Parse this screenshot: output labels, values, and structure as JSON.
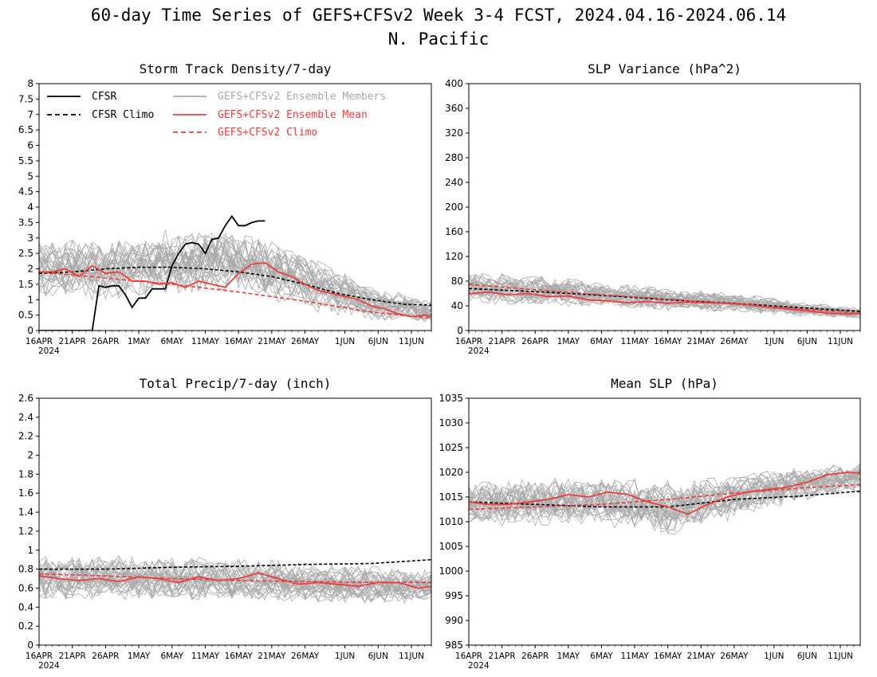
{
  "title": "60-day Time Series of GEFS+CFSv2 Week 3-4 FCST, 2024.04.16-2024.06.14",
  "subtitle": "N. Pacific",
  "colors": {
    "members": "#a9a9a9",
    "ens_mean": "#ef3b3b",
    "cfsr": "#000000"
  },
  "legend": {
    "cfsr": "CFSR",
    "cfsr_climo": "CFSR Climo",
    "members": "GEFS+CFSv2 Ensemble Members",
    "ens_mean": "GEFS+CFSv2 Ensemble Mean",
    "gefs_climo": "GEFS+CFSv2 Climo"
  },
  "x_tick_labels": [
    "16APR",
    "21APR",
    "26APR",
    "1MAY",
    "6MAY",
    "11MAY",
    "16MAY",
    "21MAY",
    "26MAY",
    "1JUN",
    "6JUN",
    "11JUN"
  ],
  "x_tick_days": [
    0,
    5,
    10,
    15,
    20,
    25,
    30,
    35,
    40,
    46,
    51,
    56
  ],
  "x_year_label": "2024",
  "ensemble_members_count_drawn": 30,
  "chart_data": [
    {
      "type": "line",
      "title": "Storm Track Density/7-day",
      "ylim": [
        0,
        8
      ],
      "yticks": [
        "0",
        "0.5",
        "1",
        "1.5",
        "2",
        "2.5",
        "3",
        "3.5",
        "4",
        "4.5",
        "5",
        "5.5",
        "6",
        "6.5",
        "7",
        "7.5",
        "8"
      ],
      "xlim": [
        0,
        59
      ],
      "members_spread": {
        "day": [
          0,
          10,
          20,
          30,
          40,
          50,
          59
        ],
        "center": [
          2.0,
          2.0,
          2.2,
          2.3,
          1.6,
          0.9,
          0.6
        ],
        "halfwidth": [
          1.3,
          1.3,
          1.4,
          1.4,
          1.2,
          0.8,
          0.5
        ]
      },
      "series": [
        {
          "name": "CFSR",
          "style": "solid",
          "color": "#000000",
          "x": [
            0,
            1,
            2,
            3,
            4,
            5,
            6,
            7,
            8,
            9,
            10,
            11,
            12,
            13,
            14,
            15,
            16,
            17,
            18,
            19,
            20,
            21,
            22,
            23,
            24,
            25,
            26,
            27,
            28,
            29,
            30,
            31,
            32,
            33,
            34
          ],
          "y": [
            0,
            0,
            0,
            0,
            0,
            0,
            0,
            0,
            0,
            1.45,
            1.4,
            1.45,
            1.45,
            1.15,
            0.75,
            1.05,
            1.05,
            1.35,
            1.35,
            1.35,
            2.1,
            2.5,
            2.8,
            2.85,
            2.8,
            2.5,
            2.95,
            3.0,
            3.4,
            3.7,
            3.4,
            3.4,
            3.5,
            3.55,
            3.55
          ]
        },
        {
          "name": "CFSR Climo",
          "style": "dashed",
          "color": "#000000",
          "x": [
            0,
            5,
            10,
            15,
            20,
            25,
            30,
            35,
            40,
            45,
            50,
            55,
            59
          ],
          "y": [
            1.85,
            1.9,
            2.0,
            2.05,
            2.05,
            2.0,
            1.9,
            1.75,
            1.5,
            1.2,
            1.0,
            0.85,
            0.82
          ]
        },
        {
          "name": "GEFS+CFSv2 Ensemble Mean",
          "style": "solid",
          "color": "#ef3b3b",
          "x": [
            0,
            2,
            4,
            6,
            8,
            10,
            12,
            14,
            16,
            18,
            20,
            22,
            24,
            26,
            28,
            30,
            32,
            34,
            36,
            38,
            40,
            42,
            44,
            46,
            48,
            50,
            52,
            54,
            56,
            58,
            59
          ],
          "y": [
            1.9,
            1.9,
            2.0,
            1.75,
            2.1,
            1.85,
            1.9,
            1.6,
            1.6,
            1.5,
            1.55,
            1.4,
            1.6,
            1.5,
            1.4,
            1.85,
            2.15,
            2.2,
            1.9,
            1.75,
            1.5,
            1.3,
            1.2,
            1.1,
            1.0,
            0.8,
            0.7,
            0.55,
            0.45,
            0.5,
            0.45
          ]
        },
        {
          "name": "GEFS+CFSv2 Climo",
          "style": "dashed",
          "color": "#ef3b3b",
          "x": [
            0,
            10,
            20,
            30,
            40,
            50,
            59
          ],
          "y": [
            1.9,
            1.7,
            1.5,
            1.25,
            0.95,
            0.6,
            0.4
          ]
        }
      ]
    },
    {
      "type": "line",
      "title": "SLP Variance (hPa^2)",
      "ylim": [
        0,
        400
      ],
      "yticks": [
        "0",
        "40",
        "80",
        "120",
        "160",
        "200",
        "240",
        "280",
        "320",
        "360",
        "400"
      ],
      "xlim": [
        0,
        59
      ],
      "members_spread": {
        "day": [
          0,
          10,
          20,
          30,
          40,
          50,
          59
        ],
        "center": [
          70,
          65,
          58,
          50,
          45,
          35,
          28
        ],
        "halfwidth": [
          35,
          32,
          28,
          25,
          22,
          15,
          12
        ]
      },
      "series": [
        {
          "name": "CFSR Climo",
          "style": "dashed",
          "color": "#000000",
          "x": [
            0,
            10,
            20,
            30,
            40,
            50,
            59
          ],
          "y": [
            68,
            63,
            57,
            50,
            44,
            37,
            31
          ]
        },
        {
          "name": "GEFS+CFSv2 Ensemble Mean",
          "style": "solid",
          "color": "#ef3b3b",
          "x": [
            0,
            3,
            6,
            9,
            12,
            15,
            18,
            21,
            24,
            27,
            30,
            33,
            36,
            39,
            42,
            45,
            48,
            51,
            54,
            57,
            59
          ],
          "y": [
            60,
            62,
            58,
            60,
            55,
            56,
            50,
            48,
            45,
            47,
            44,
            46,
            45,
            44,
            42,
            38,
            35,
            32,
            28,
            27,
            28
          ]
        },
        {
          "name": "GEFS+CFSv2 Climo",
          "style": "dashed",
          "color": "#ef3b3b",
          "x": [
            0,
            10,
            20,
            30,
            40,
            50,
            59
          ],
          "y": [
            75,
            66,
            58,
            51,
            43,
            35,
            28
          ]
        }
      ]
    },
    {
      "type": "line",
      "title": "Total Precip/7-day (inch)",
      "ylim": [
        0,
        2.6
      ],
      "yticks": [
        "0",
        "0.2",
        "0.4",
        "0.6",
        "0.8",
        "1",
        "1.2",
        "1.4",
        "1.6",
        "1.8",
        "2",
        "2.2",
        "2.4",
        "2.6"
      ],
      "xlim": [
        0,
        59
      ],
      "members_spread": {
        "day": [
          0,
          10,
          20,
          30,
          40,
          50,
          59
        ],
        "center": [
          0.72,
          0.72,
          0.7,
          0.7,
          0.66,
          0.64,
          0.62
        ],
        "halfwidth": [
          0.32,
          0.32,
          0.3,
          0.3,
          0.28,
          0.26,
          0.24
        ]
      },
      "series": [
        {
          "name": "CFSR Climo",
          "style": "dashed",
          "color": "#000000",
          "x": [
            0,
            10,
            20,
            30,
            40,
            50,
            59
          ],
          "y": [
            0.8,
            0.8,
            0.82,
            0.83,
            0.85,
            0.86,
            0.9
          ]
        },
        {
          "name": "GEFS+CFSv2 Ensemble Mean",
          "style": "solid",
          "color": "#ef3b3b",
          "x": [
            0,
            3,
            6,
            9,
            12,
            15,
            18,
            21,
            24,
            27,
            30,
            33,
            36,
            39,
            42,
            45,
            48,
            51,
            54,
            57,
            59
          ],
          "y": [
            0.73,
            0.7,
            0.68,
            0.7,
            0.67,
            0.72,
            0.7,
            0.66,
            0.72,
            0.68,
            0.7,
            0.76,
            0.7,
            0.64,
            0.66,
            0.64,
            0.62,
            0.66,
            0.66,
            0.6,
            0.62
          ]
        },
        {
          "name": "GEFS+CFSv2 Climo",
          "style": "dashed",
          "color": "#ef3b3b",
          "x": [
            0,
            10,
            20,
            30,
            40,
            50,
            59
          ],
          "y": [
            0.75,
            0.73,
            0.7,
            0.68,
            0.67,
            0.66,
            0.66
          ]
        }
      ]
    },
    {
      "type": "line",
      "title": "Mean SLP (hPa)",
      "ylim": [
        985,
        1035
      ],
      "yticks": [
        "985",
        "990",
        "995",
        "1000",
        "1005",
        "1010",
        "1015",
        "1020",
        "1025",
        "1030",
        "1035"
      ],
      "xlim": [
        0,
        59
      ],
      "members_spread": {
        "day": [
          0,
          10,
          20,
          30,
          40,
          50,
          59
        ],
        "center": [
          1013.5,
          1014,
          1014,
          1012.5,
          1015,
          1017.5,
          1019
        ],
        "halfwidth": [
          6,
          6.5,
          7,
          7.5,
          6,
          5,
          4.5
        ]
      },
      "series": [
        {
          "name": "CFSR Climo",
          "style": "dashed",
          "color": "#000000",
          "x": [
            0,
            10,
            20,
            30,
            40,
            50,
            59
          ],
          "y": [
            1014,
            1013.5,
            1013,
            1013,
            1014.5,
            1015.2,
            1016.2
          ]
        },
        {
          "name": "GEFS+CFSv2 Ensemble Mean",
          "style": "solid",
          "color": "#ef3b3b",
          "x": [
            0,
            3,
            6,
            9,
            12,
            15,
            18,
            21,
            24,
            27,
            30,
            33,
            36,
            39,
            42,
            45,
            48,
            51,
            54,
            57,
            59
          ],
          "y": [
            1014,
            1013.5,
            1013.5,
            1014,
            1014.5,
            1015.5,
            1015,
            1016,
            1015.5,
            1014,
            1013,
            1011.5,
            1013.5,
            1015,
            1016,
            1016.5,
            1017,
            1018,
            1019.5,
            1020,
            1019.8
          ]
        },
        {
          "name": "GEFS+CFSv2 Climo",
          "style": "dashed",
          "color": "#ef3b3b",
          "x": [
            0,
            10,
            20,
            30,
            40,
            50,
            59
          ],
          "y": [
            1012.5,
            1013,
            1013.5,
            1014.5,
            1015.8,
            1016.8,
            1017.5
          ]
        }
      ]
    }
  ]
}
